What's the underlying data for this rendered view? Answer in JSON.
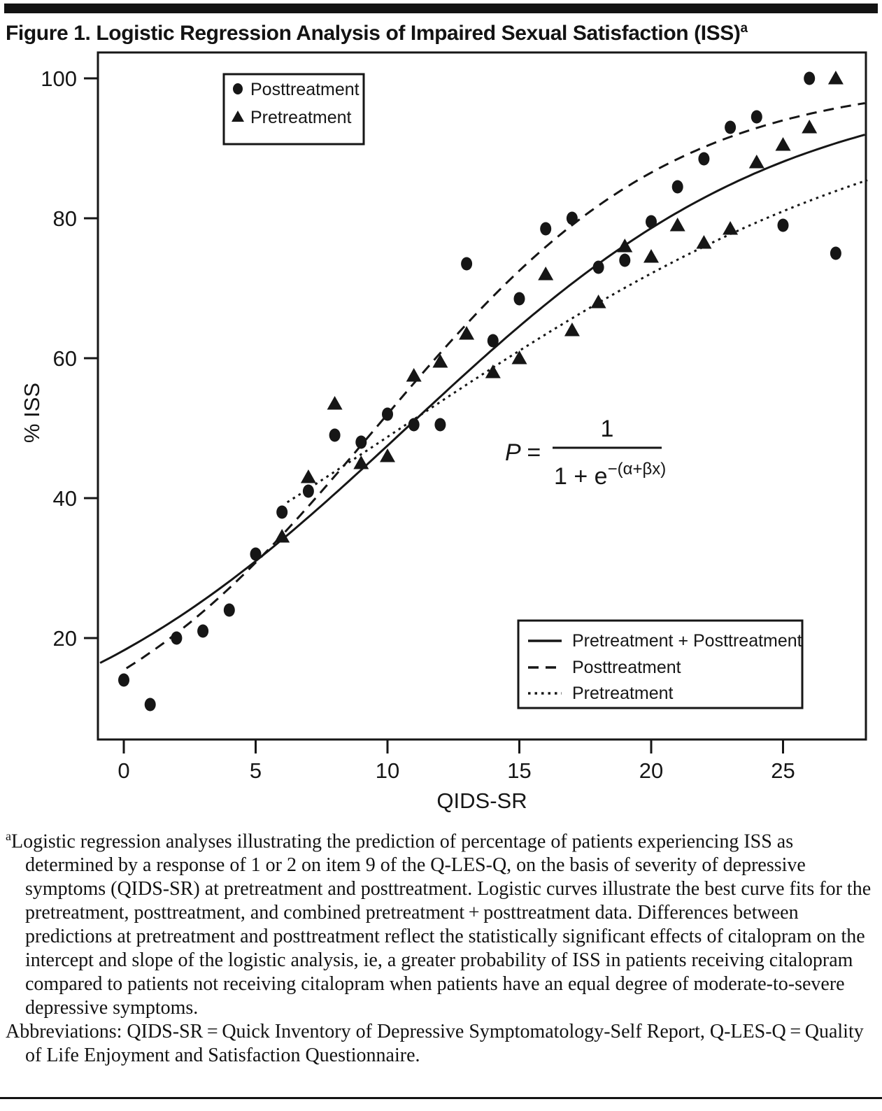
{
  "title": {
    "text": "Figure 1. Logistic Regression Analysis of Impaired Sexual Satisfaction (ISS)",
    "superscript": "a"
  },
  "chart_data": {
    "type": "scatter",
    "title": "",
    "xlabel": "QIDS-SR",
    "ylabel": "% ISS",
    "x_ticks": [
      0,
      5,
      10,
      15,
      20,
      25
    ],
    "y_ticks": [
      100,
      80,
      60,
      40,
      20
    ],
    "xlim": [
      -1,
      28.2
    ],
    "ylim": [
      4.5,
      103.7
    ],
    "grid": false,
    "series": [
      {
        "name": "Posttreatment",
        "marker": "circle",
        "x": [
          0,
          1,
          2,
          3,
          4,
          5,
          6,
          7,
          8,
          9,
          10,
          11,
          12,
          13,
          14,
          15,
          16,
          17,
          18,
          19,
          20,
          21,
          22,
          23,
          24,
          25,
          26,
          27
        ],
        "y": [
          14,
          10.5,
          20,
          21,
          24,
          32,
          38,
          41,
          49,
          48,
          52,
          50.5,
          50.5,
          73.5,
          62.5,
          68.5,
          78.5,
          80,
          73,
          74,
          79.5,
          84.5,
          88.5,
          93,
          94.5,
          79,
          100,
          75
        ]
      },
      {
        "name": "Pretreatment",
        "marker": "triangle",
        "x": [
          6,
          7,
          8,
          9,
          10,
          11,
          12,
          13,
          14,
          15,
          16,
          17,
          18,
          19,
          20,
          21,
          22,
          23,
          24,
          25,
          26,
          27
        ],
        "y": [
          34.5,
          43,
          53.5,
          45,
          46,
          57.5,
          59.5,
          63.5,
          58,
          60,
          72,
          64,
          68,
          76,
          74.5,
          79,
          76.5,
          78.5,
          88,
          90.5,
          93,
          100
        ]
      }
    ],
    "curves": [
      {
        "name": "Pretreatment + Posttreatment",
        "style": "solid",
        "logistic": {
          "a": -1.5,
          "b": 0.14
        },
        "x_range": [
          -0.9,
          28.1
        ]
      },
      {
        "name": "Posttreatment",
        "style": "dashed",
        "logistic": {
          "a": -1.7,
          "b": 0.178
        },
        "x_range": [
          0.1,
          28.1
        ]
      },
      {
        "name": "Pretreatment",
        "style": "dotted",
        "logistic": {
          "a": -1.05,
          "b": 0.1
        },
        "x_range": [
          6.2,
          28.3
        ]
      }
    ],
    "marker_legend": {
      "items": [
        {
          "marker": "circle",
          "label": "Posttreatment"
        },
        {
          "marker": "triangle",
          "label": "Pretreatment"
        }
      ]
    },
    "line_legend": {
      "items": [
        {
          "style": "solid",
          "label": "Pretreatment + Posttreatment"
        },
        {
          "style": "dashed",
          "label": "Posttreatment"
        },
        {
          "style": "dotted",
          "label": "Pretreatment"
        }
      ]
    },
    "formula": {
      "lhs": "P =",
      "numerator": "1",
      "denominator_base": "1 + e",
      "denominator_exponent": "−(α+βx)"
    },
    "legend_position": "marker legend top-left inside plot; line legend bottom-right inside plot"
  },
  "footnote": {
    "para1_superscript": "a",
    "para1": "Logistic regression analyses illustrating the prediction of percentage of patients experiencing ISS as determined by a response of 1 or 2 on item 9 of the Q-LES-Q, on the basis of severity of depressive symptoms (QIDS-SR) at pretreatment and posttreatment. Logistic curves illustrate the best curve fits for the pretreatment, posttreatment, and combined pretreatment + posttreatment data. Differences between predictions at pretreatment and posttreatment reflect the statistically significant effects of citalopram on the intercept and slope of the logistic analysis, ie, a greater probability of ISS in patients receiving citalopram compared to patients not receiving citalopram when patients have an equal degree of moderate-to-severe depressive symptoms.",
    "para2": "Abbreviations: QIDS-SR = Quick Inventory of Depressive Symptomatology-Self Report, Q-LES-Q = Quality of Life Enjoyment and Satisfaction Questionnaire."
  },
  "colors": {
    "ink": "#161616",
    "background": "#ffffff"
  }
}
